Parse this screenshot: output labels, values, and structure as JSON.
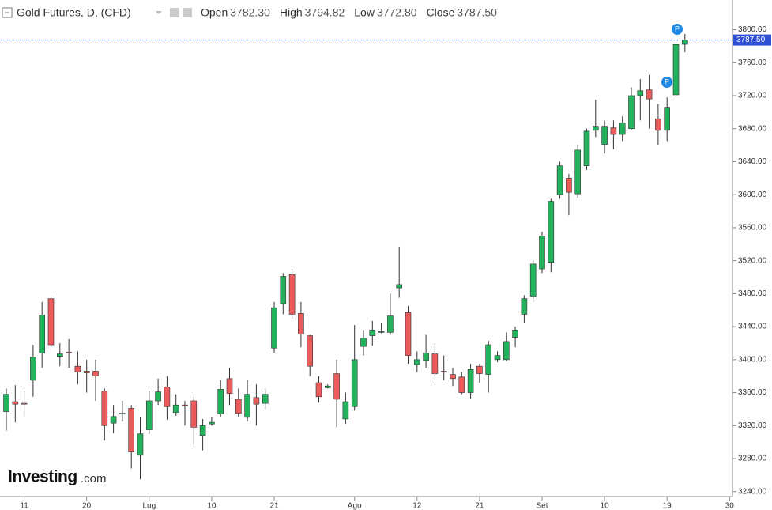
{
  "chart_data": {
    "type": "candlestick",
    "header": {
      "title": "Gold Futures, D, (CFD)",
      "stats": [
        {
          "label": "Open",
          "value": "3782.30"
        },
        {
          "label": "High",
          "value": "3794.82"
        },
        {
          "label": "Low",
          "value": "3772.80"
        },
        {
          "label": "Close",
          "value": "3787.50"
        }
      ]
    },
    "watermark": "Investing",
    "watermark_suffix": ".com",
    "last_price_label": "3787.50",
    "up_color": "#22b25c",
    "down_color": "#ec5b5b",
    "categories": [
      null,
      null,
      "11",
      null,
      null,
      null,
      null,
      null,
      null,
      "20",
      null,
      null,
      null,
      null,
      null,
      null,
      "Lug",
      null,
      null,
      null,
      null,
      null,
      null,
      "10",
      null,
      null,
      null,
      null,
      null,
      null,
      "21",
      null,
      null,
      null,
      null,
      null,
      null,
      null,
      null,
      "Ago",
      null,
      null,
      null,
      null,
      null,
      null,
      "12",
      null,
      null,
      null,
      null,
      null,
      null,
      "21",
      null,
      null,
      null,
      null,
      null,
      null,
      "Set",
      null,
      null,
      null,
      null,
      null,
      null,
      "10",
      null,
      null,
      null,
      null,
      null,
      null,
      "19",
      null,
      null,
      null,
      null,
      null,
      null,
      "30"
    ],
    "open": [
      3337,
      3349,
      3347,
      3375,
      3408,
      3474,
      3404,
      3409,
      3392,
      3386,
      3386,
      3362,
      3323,
      3334,
      3341,
      3284,
      3315,
      3350,
      3367,
      3336,
      3345,
      3350,
      3308,
      3322,
      3334,
      3377,
      3352,
      3330,
      3354,
      3347,
      3414,
      3468,
      3503,
      3456,
      3429,
      3372,
      3366,
      3383,
      3328,
      3343,
      3416,
      3429,
      3434,
      3433,
      3487,
      3457,
      3394,
      3399,
      3407,
      3386,
      3382,
      3379,
      3360,
      3392,
      3382,
      3400,
      3400,
      3427,
      3455,
      3477,
      3510,
      3518,
      3600,
      3620,
      3601,
      3635,
      3678,
      3661,
      3681,
      3673,
      3680,
      3720,
      3727,
      3692,
      3678,
      3721,
      3782.3,
      null,
      null,
      null,
      null,
      null
    ],
    "high": [
      3365,
      3369,
      3362,
      3418,
      3470,
      3478,
      3420,
      3425,
      3410,
      3400,
      3400,
      3365,
      3345,
      3350,
      3345,
      3330,
      3362,
      3377,
      3380,
      3358,
      3350,
      3355,
      3328,
      3330,
      3375,
      3390,
      3365,
      3375,
      3370,
      3365,
      3470,
      3505,
      3510,
      3470,
      3430,
      3380,
      3370,
      3400,
      3360,
      3442,
      3436,
      3447,
      3445,
      3480,
      3537,
      3465,
      3410,
      3430,
      3420,
      3405,
      3390,
      3385,
      3395,
      3395,
      3423,
      3410,
      3433,
      3440,
      3478,
      3520,
      3555,
      3595,
      3640,
      3625,
      3660,
      3680,
      3715,
      3690,
      3690,
      3695,
      3730,
      3740,
      3745,
      3710,
      3718,
      3786,
      3794.82,
      null,
      null,
      null,
      null,
      null
    ],
    "low": [
      3314,
      3324,
      3330,
      3355,
      3390,
      3415,
      3392,
      3390,
      3370,
      3360,
      3350,
      3302,
      3311,
      3325,
      3268,
      3255,
      3310,
      3345,
      3327,
      3332,
      3320,
      3297,
      3290,
      3320,
      3330,
      3345,
      3330,
      3325,
      3320,
      3340,
      3408,
      3455,
      3450,
      3415,
      3380,
      3348,
      3365,
      3318,
      3322,
      3338,
      3405,
      3417,
      3432,
      3430,
      3475,
      3395,
      3385,
      3390,
      3375,
      3375,
      3368,
      3358,
      3353,
      3372,
      3360,
      3397,
      3398,
      3415,
      3445,
      3470,
      3505,
      3506,
      3595,
      3575,
      3596,
      3630,
      3670,
      3650,
      3655,
      3665,
      3678,
      3690,
      3680,
      3660,
      3665,
      3718,
      3772.8,
      null,
      null,
      null,
      null,
      null
    ],
    "close": [
      3358,
      3346,
      3346,
      3403,
      3454,
      3418,
      3407,
      3408,
      3385,
      3384,
      3380,
      3320,
      3331,
      3335,
      3288,
      3310,
      3350,
      3361,
      3343,
      3345,
      3344,
      3318,
      3320,
      3324,
      3364,
      3359,
      3335,
      3358,
      3346,
      3358,
      3463,
      3501,
      3455,
      3431,
      3392,
      3355,
      3368,
      3352,
      3349,
      3400,
      3426,
      3436,
      3434,
      3453,
      3491,
      3405,
      3400,
      3408,
      3383,
      3385,
      3377,
      3360,
      3388,
      3383,
      3418,
      3405,
      3422,
      3436,
      3474,
      3516,
      3550,
      3592,
      3635,
      3603,
      3654,
      3677,
      3683,
      3683,
      3673,
      3687,
      3720,
      3726,
      3716,
      3678,
      3706,
      3782,
      3787.5,
      null,
      null,
      null,
      null,
      null
    ],
    "ylim": [
      3234,
      3836
    ],
    "yticks": [
      {
        "value": 3240,
        "label": "3240.00"
      },
      {
        "value": 3280,
        "label": "3280.00"
      },
      {
        "value": 3320,
        "label": "3320.00"
      },
      {
        "value": 3360,
        "label": "3360.00"
      },
      {
        "value": 3400,
        "label": "3400.00"
      },
      {
        "value": 3440,
        "label": "3440.00"
      },
      {
        "value": 3480,
        "label": "3480.00"
      },
      {
        "value": 3520,
        "label": "3520.00"
      },
      {
        "value": 3560,
        "label": "3560.00"
      },
      {
        "value": 3600,
        "label": "3600.00"
      },
      {
        "value": 3640,
        "label": "3640.00"
      },
      {
        "value": 3680,
        "label": "3680.00"
      },
      {
        "value": 3720,
        "label": "3720.00"
      },
      {
        "value": 3760,
        "label": "3760.00"
      },
      {
        "value": 3800,
        "label": "3800.00"
      }
    ]
  }
}
